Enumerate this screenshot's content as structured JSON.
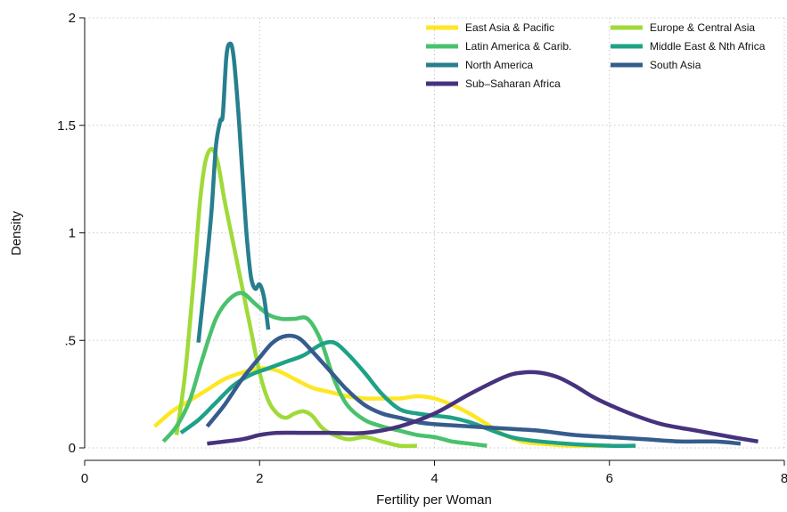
{
  "chart_data": {
    "type": "line",
    "xlabel": "Fertility per Woman",
    "ylabel": "Density",
    "xlim": [
      0,
      8
    ],
    "ylim": [
      0,
      2
    ],
    "x_ticks": [
      0,
      2,
      4,
      6,
      8
    ],
    "x_tick_labels": [
      "0",
      "2",
      "4",
      "6",
      "8"
    ],
    "y_ticks": [
      0,
      0.5,
      1,
      1.5,
      2
    ],
    "y_tick_labels": [
      "0",
      ".5",
      "1",
      "1.5",
      "2"
    ],
    "grid": "dotted",
    "legend_position": "top-right",
    "series": [
      {
        "name": "East Asia & Pacific",
        "color": "#fde725",
        "points": [
          [
            0.8,
            0.1
          ],
          [
            1.0,
            0.17
          ],
          [
            1.2,
            0.22
          ],
          [
            1.4,
            0.27
          ],
          [
            1.6,
            0.32
          ],
          [
            1.8,
            0.35
          ],
          [
            2.0,
            0.37
          ],
          [
            2.2,
            0.36
          ],
          [
            2.4,
            0.32
          ],
          [
            2.6,
            0.28
          ],
          [
            2.8,
            0.26
          ],
          [
            3.0,
            0.24
          ],
          [
            3.2,
            0.23
          ],
          [
            3.4,
            0.23
          ],
          [
            3.6,
            0.23
          ],
          [
            3.8,
            0.24
          ],
          [
            4.0,
            0.23
          ],
          [
            4.2,
            0.2
          ],
          [
            4.4,
            0.16
          ],
          [
            4.6,
            0.11
          ],
          [
            4.8,
            0.06
          ],
          [
            5.0,
            0.03
          ],
          [
            5.2,
            0.02
          ],
          [
            5.6,
            0.01
          ],
          [
            6.0,
            0.01
          ]
        ]
      },
      {
        "name": "Europe & Central Asia",
        "color": "#a0da39",
        "points": [
          [
            1.05,
            0.06
          ],
          [
            1.15,
            0.35
          ],
          [
            1.25,
            0.8
          ],
          [
            1.32,
            1.15
          ],
          [
            1.38,
            1.33
          ],
          [
            1.45,
            1.39
          ],
          [
            1.52,
            1.33
          ],
          [
            1.6,
            1.15
          ],
          [
            1.7,
            0.95
          ],
          [
            1.8,
            0.75
          ],
          [
            1.9,
            0.55
          ],
          [
            2.0,
            0.35
          ],
          [
            2.1,
            0.22
          ],
          [
            2.2,
            0.16
          ],
          [
            2.3,
            0.14
          ],
          [
            2.4,
            0.16
          ],
          [
            2.5,
            0.17
          ],
          [
            2.6,
            0.15
          ],
          [
            2.7,
            0.1
          ],
          [
            2.8,
            0.07
          ],
          [
            3.0,
            0.04
          ],
          [
            3.2,
            0.05
          ],
          [
            3.4,
            0.03
          ],
          [
            3.6,
            0.01
          ],
          [
            3.8,
            0.01
          ]
        ]
      },
      {
        "name": "Latin America & Carib.",
        "color": "#4ac16d",
        "points": [
          [
            0.9,
            0.03
          ],
          [
            1.05,
            0.1
          ],
          [
            1.2,
            0.22
          ],
          [
            1.35,
            0.42
          ],
          [
            1.5,
            0.6
          ],
          [
            1.65,
            0.69
          ],
          [
            1.8,
            0.72
          ],
          [
            1.95,
            0.67
          ],
          [
            2.1,
            0.62
          ],
          [
            2.25,
            0.6
          ],
          [
            2.4,
            0.6
          ],
          [
            2.55,
            0.6
          ],
          [
            2.7,
            0.5
          ],
          [
            2.85,
            0.32
          ],
          [
            3.0,
            0.2
          ],
          [
            3.2,
            0.13
          ],
          [
            3.4,
            0.1
          ],
          [
            3.6,
            0.08
          ],
          [
            3.8,
            0.06
          ],
          [
            4.0,
            0.05
          ],
          [
            4.2,
            0.03
          ],
          [
            4.4,
            0.02
          ],
          [
            4.6,
            0.01
          ]
        ]
      },
      {
        "name": "Middle East & Nth Africa",
        "color": "#1fa187",
        "points": [
          [
            1.1,
            0.07
          ],
          [
            1.3,
            0.13
          ],
          [
            1.5,
            0.21
          ],
          [
            1.7,
            0.29
          ],
          [
            1.9,
            0.34
          ],
          [
            2.1,
            0.37
          ],
          [
            2.3,
            0.4
          ],
          [
            2.5,
            0.43
          ],
          [
            2.7,
            0.48
          ],
          [
            2.85,
            0.49
          ],
          [
            3.0,
            0.44
          ],
          [
            3.2,
            0.35
          ],
          [
            3.4,
            0.25
          ],
          [
            3.6,
            0.18
          ],
          [
            3.8,
            0.16
          ],
          [
            4.0,
            0.15
          ],
          [
            4.2,
            0.14
          ],
          [
            4.4,
            0.12
          ],
          [
            4.6,
            0.09
          ],
          [
            4.8,
            0.06
          ],
          [
            5.0,
            0.04
          ],
          [
            5.5,
            0.02
          ],
          [
            6.0,
            0.01
          ],
          [
            6.3,
            0.01
          ]
        ]
      },
      {
        "name": "North America",
        "color": "#277f8e",
        "points": [
          [
            1.3,
            0.49
          ],
          [
            1.38,
            0.8
          ],
          [
            1.45,
            1.1
          ],
          [
            1.5,
            1.4
          ],
          [
            1.55,
            1.52
          ],
          [
            1.58,
            1.55
          ],
          [
            1.62,
            1.82
          ],
          [
            1.66,
            1.88
          ],
          [
            1.7,
            1.83
          ],
          [
            1.75,
            1.6
          ],
          [
            1.8,
            1.3
          ],
          [
            1.85,
            1.0
          ],
          [
            1.9,
            0.8
          ],
          [
            1.95,
            0.74
          ],
          [
            2.0,
            0.76
          ],
          [
            2.05,
            0.7
          ],
          [
            2.1,
            0.55
          ]
        ]
      },
      {
        "name": "South Asia",
        "color": "#365c8d",
        "points": [
          [
            1.4,
            0.1
          ],
          [
            1.6,
            0.2
          ],
          [
            1.8,
            0.32
          ],
          [
            2.0,
            0.42
          ],
          [
            2.15,
            0.49
          ],
          [
            2.3,
            0.52
          ],
          [
            2.45,
            0.51
          ],
          [
            2.6,
            0.45
          ],
          [
            2.8,
            0.36
          ],
          [
            3.0,
            0.27
          ],
          [
            3.2,
            0.2
          ],
          [
            3.4,
            0.16
          ],
          [
            3.6,
            0.14
          ],
          [
            3.8,
            0.12
          ],
          [
            4.0,
            0.11
          ],
          [
            4.4,
            0.1
          ],
          [
            4.8,
            0.09
          ],
          [
            5.2,
            0.08
          ],
          [
            5.6,
            0.06
          ],
          [
            6.0,
            0.05
          ],
          [
            6.4,
            0.04
          ],
          [
            6.8,
            0.03
          ],
          [
            7.2,
            0.03
          ],
          [
            7.5,
            0.02
          ]
        ]
      },
      {
        "name": "Sub–Saharan Africa",
        "color": "#46327e",
        "points": [
          [
            1.4,
            0.02
          ],
          [
            1.8,
            0.04
          ],
          [
            2.0,
            0.06
          ],
          [
            2.2,
            0.07
          ],
          [
            2.5,
            0.07
          ],
          [
            2.8,
            0.07
          ],
          [
            3.2,
            0.07
          ],
          [
            3.6,
            0.1
          ],
          [
            4.0,
            0.16
          ],
          [
            4.4,
            0.25
          ],
          [
            4.8,
            0.33
          ],
          [
            5.0,
            0.35
          ],
          [
            5.2,
            0.35
          ],
          [
            5.4,
            0.33
          ],
          [
            5.6,
            0.29
          ],
          [
            5.8,
            0.24
          ],
          [
            6.0,
            0.2
          ],
          [
            6.3,
            0.15
          ],
          [
            6.6,
            0.11
          ],
          [
            7.0,
            0.08
          ],
          [
            7.4,
            0.05
          ],
          [
            7.7,
            0.03
          ]
        ]
      }
    ]
  }
}
